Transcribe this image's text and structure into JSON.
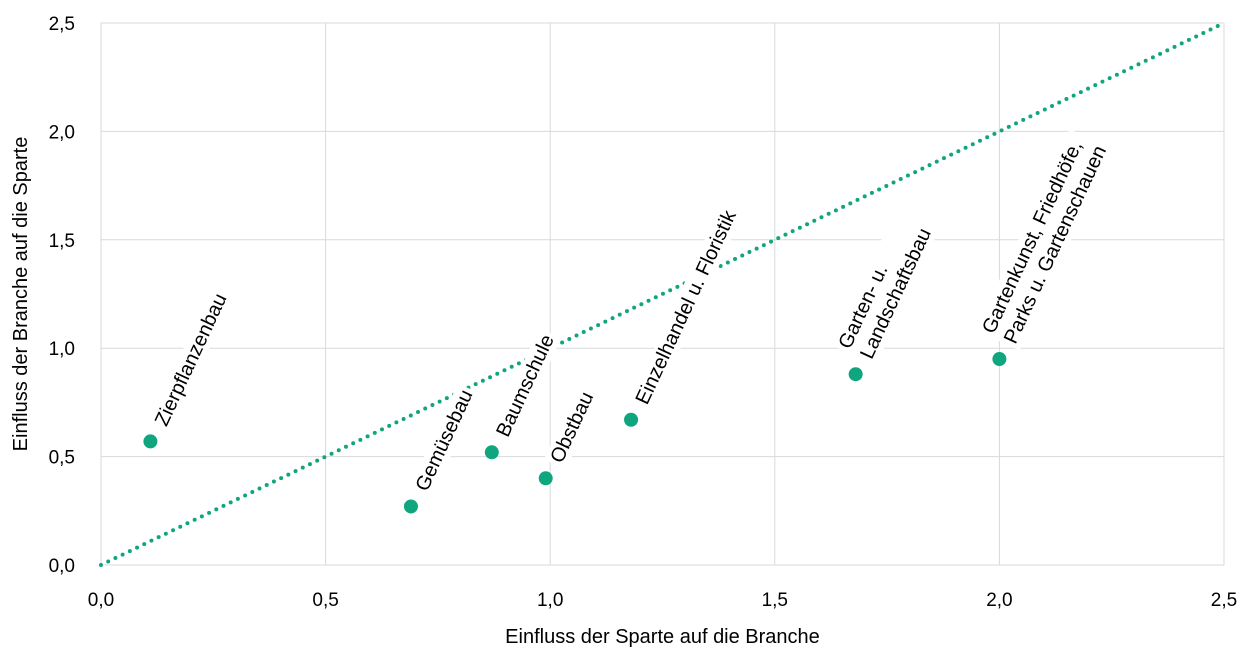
{
  "chart_data": {
    "type": "scatter",
    "title": "",
    "xlabel": "Einfluss der Sparte auf die Branche",
    "ylabel": "Einfluss der Branche auf die Sparte",
    "xlim": [
      0,
      2.5
    ],
    "ylim": [
      0,
      2.5
    ],
    "x_ticks": [
      0,
      0.5,
      1.0,
      1.5,
      2.0,
      2.5
    ],
    "y_ticks": [
      0,
      0.5,
      1.0,
      1.5,
      2.0,
      2.5
    ],
    "x_tick_labels": [
      "0,0",
      "0,5",
      "1,0",
      "1,5",
      "2,0",
      "2,5"
    ],
    "y_tick_labels": [
      "0,0",
      "0,5",
      "1,0",
      "1,5",
      "2,0",
      "2,5"
    ],
    "grid": true,
    "point_color": "#0fa57e",
    "reference_line": {
      "style": "dotted",
      "color": "#0fa57e",
      "from": [
        0,
        0
      ],
      "to": [
        2.5,
        2.5
      ]
    },
    "points": [
      {
        "x": 0.11,
        "y": 0.57,
        "label": [
          "Zierpflanzenbau"
        ]
      },
      {
        "x": 0.69,
        "y": 0.27,
        "label": [
          "Gemüsebau"
        ]
      },
      {
        "x": 0.87,
        "y": 0.52,
        "label": [
          "Baumschule"
        ]
      },
      {
        "x": 0.99,
        "y": 0.4,
        "label": [
          "Obstbau"
        ]
      },
      {
        "x": 1.18,
        "y": 0.67,
        "label": [
          "Einzelhandel u. Floristik"
        ]
      },
      {
        "x": 1.68,
        "y": 0.88,
        "label": [
          "Garten- u.",
          "Landschaftsbau"
        ]
      },
      {
        "x": 2.0,
        "y": 0.95,
        "label": [
          "Gartenkunst, Friedhöfe,",
          "Parks u. Gartenschauen"
        ]
      }
    ]
  }
}
